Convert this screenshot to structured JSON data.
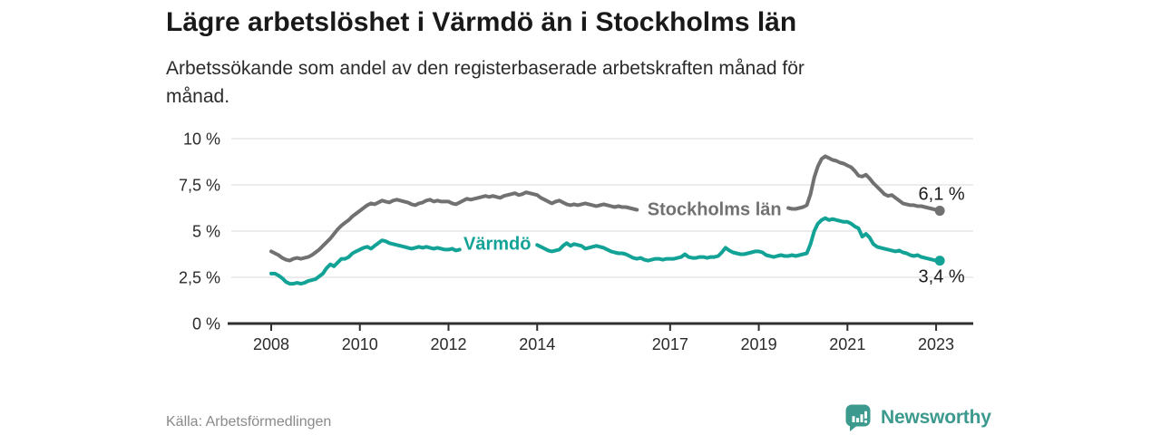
{
  "header": {
    "title": "Lägre arbetslöshet i Värmdö än i Stockholms län",
    "subtitle_line1": "Arbetssökande som andel av den registerbaserade arbetskraften månad för",
    "subtitle_line2": "månad."
  },
  "footer": {
    "source": "Källa: Arbetsförmedlingen",
    "brand_name": "Newsworthy",
    "brand_icon": "newsworthy-bars-speech-bubble-icon"
  },
  "colors": {
    "brand_teal": "#3b9a8d",
    "line_teal": "#12a296",
    "line_gray": "#717171",
    "axis_dark": "#2f2f2f",
    "gridline": "#e0e0e0",
    "tick_label": "#2b2b2b",
    "end_label_text": "#1c1c1c"
  },
  "chart_data": {
    "type": "line",
    "title": "Lägre arbetslöshet i Värmdö än i Stockholms län",
    "subtitle": "Arbetssökande som andel av den registerbaserade arbetskraften månad för månad.",
    "unit": "%",
    "frequency": "monthly",
    "x_start": "2008-01",
    "x_end": "2023-02",
    "ylim": [
      0,
      10
    ],
    "grid": "horizontal-only",
    "legend": "inline-labels-on-lines",
    "y_ticks": [
      {
        "value": 0,
        "label": "0 %"
      },
      {
        "value": 2.5,
        "label": "2,5 %"
      },
      {
        "value": 5,
        "label": "5 %"
      },
      {
        "value": 7.5,
        "label": "7,5 %"
      },
      {
        "value": 10,
        "label": "10 %"
      }
    ],
    "x_ticks": [
      {
        "year": 2008,
        "label": "2008"
      },
      {
        "year": 2010,
        "label": "2010"
      },
      {
        "year": 2012,
        "label": "2012"
      },
      {
        "year": 2014,
        "label": "2014"
      },
      {
        "year": 2017,
        "label": "2017"
      },
      {
        "year": 2019,
        "label": "2019"
      },
      {
        "year": 2021,
        "label": "2021"
      },
      {
        "year": 2023,
        "label": "2023"
      }
    ],
    "series": [
      {
        "name": "Stockholms län",
        "color": "#717171",
        "end_value": 6.1,
        "end_label": "6,1 %",
        "end_label_position": "above",
        "label_anchor": {
          "year": 2018.0,
          "value": 6.2
        },
        "note": "nulls mark the stretch where the inline series label covers the line",
        "values": [
          3.9,
          3.8,
          3.7,
          3.55,
          3.45,
          3.4,
          3.5,
          3.55,
          3.5,
          3.55,
          3.6,
          3.7,
          3.85,
          4.0,
          4.2,
          4.4,
          4.6,
          4.85,
          5.1,
          5.3,
          5.45,
          5.6,
          5.8,
          5.95,
          6.1,
          6.25,
          6.4,
          6.5,
          6.45,
          6.55,
          6.65,
          6.6,
          6.55,
          6.65,
          6.7,
          6.65,
          6.6,
          6.55,
          6.45,
          6.4,
          6.5,
          6.55,
          6.65,
          6.7,
          6.6,
          6.65,
          6.6,
          6.6,
          6.6,
          6.5,
          6.45,
          6.55,
          6.65,
          6.75,
          6.7,
          6.75,
          6.8,
          6.85,
          6.9,
          6.85,
          6.9,
          6.85,
          6.8,
          6.9,
          6.95,
          7.0,
          7.05,
          6.95,
          7.0,
          7.1,
          7.05,
          7.0,
          6.95,
          6.8,
          6.7,
          6.6,
          6.5,
          6.6,
          6.65,
          6.55,
          6.45,
          6.4,
          6.45,
          6.4,
          6.45,
          6.5,
          6.45,
          6.4,
          6.35,
          6.4,
          6.45,
          6.4,
          6.35,
          6.3,
          6.35,
          6.3,
          6.3,
          6.25,
          6.2,
          6.15,
          null,
          null,
          null,
          null,
          null,
          null,
          null,
          null,
          null,
          null,
          null,
          null,
          null,
          null,
          null,
          null,
          null,
          null,
          null,
          null,
          null,
          null,
          null,
          null,
          null,
          null,
          null,
          null,
          null,
          null,
          null,
          null,
          null,
          null,
          null,
          null,
          null,
          null,
          null,
          null,
          6.25,
          6.2,
          6.2,
          6.25,
          6.3,
          6.4,
          7.0,
          7.9,
          8.5,
          8.9,
          9.05,
          8.95,
          8.85,
          8.8,
          8.7,
          8.65,
          8.55,
          8.45,
          8.25,
          8.0,
          7.95,
          8.05,
          7.85,
          7.6,
          7.4,
          7.2,
          7.0,
          6.9,
          6.95,
          6.8,
          6.65,
          6.5,
          6.45,
          6.4,
          6.4,
          6.35,
          6.35,
          6.3,
          6.25,
          6.2,
          6.15,
          6.1
        ]
      },
      {
        "name": "Värmdö",
        "color": "#12a296",
        "end_value": 3.4,
        "end_label": "3,4 %",
        "end_label_position": "below",
        "label_anchor": {
          "year": 2013.1,
          "value": 4.35
        },
        "note": "nulls mark the stretch where the inline series label covers the line",
        "values": [
          2.7,
          2.7,
          2.6,
          2.45,
          2.25,
          2.15,
          2.15,
          2.2,
          2.15,
          2.2,
          2.3,
          2.35,
          2.4,
          2.55,
          2.7,
          3.0,
          3.2,
          3.1,
          3.3,
          3.5,
          3.5,
          3.6,
          3.8,
          3.9,
          4.0,
          4.1,
          4.15,
          4.05,
          4.2,
          4.35,
          4.5,
          4.45,
          4.35,
          4.3,
          4.25,
          4.2,
          4.15,
          4.1,
          4.05,
          4.1,
          4.15,
          4.1,
          4.15,
          4.1,
          4.05,
          4.1,
          4.05,
          4.0,
          4.0,
          4.05,
          3.95,
          4.0,
          null,
          null,
          null,
          null,
          null,
          null,
          null,
          null,
          null,
          null,
          null,
          null,
          null,
          null,
          null,
          null,
          null,
          null,
          null,
          null,
          4.25,
          4.15,
          4.05,
          3.95,
          3.9,
          3.95,
          4.0,
          4.2,
          4.35,
          4.2,
          4.3,
          4.25,
          4.2,
          4.05,
          4.1,
          4.15,
          4.2,
          4.15,
          4.1,
          4.0,
          3.9,
          3.85,
          3.8,
          3.8,
          3.75,
          3.65,
          3.55,
          3.5,
          3.55,
          3.45,
          3.4,
          3.45,
          3.5,
          3.5,
          3.45,
          3.5,
          3.5,
          3.5,
          3.55,
          3.6,
          3.75,
          3.6,
          3.55,
          3.55,
          3.6,
          3.6,
          3.55,
          3.6,
          3.6,
          3.65,
          3.85,
          4.1,
          3.95,
          3.85,
          3.8,
          3.75,
          3.75,
          3.8,
          3.85,
          3.9,
          3.9,
          3.85,
          3.7,
          3.65,
          3.6,
          3.65,
          3.7,
          3.65,
          3.65,
          3.7,
          3.65,
          3.7,
          3.75,
          3.8,
          4.3,
          5.0,
          5.4,
          5.6,
          5.7,
          5.6,
          5.65,
          5.6,
          5.55,
          5.5,
          5.5,
          5.4,
          5.25,
          5.15,
          4.7,
          4.85,
          4.65,
          4.3,
          4.15,
          4.1,
          4.05,
          4.0,
          3.95,
          3.9,
          3.95,
          3.85,
          3.8,
          3.7,
          3.65,
          3.7,
          3.6,
          3.55,
          3.5,
          3.45,
          3.4,
          3.4
        ]
      }
    ]
  }
}
